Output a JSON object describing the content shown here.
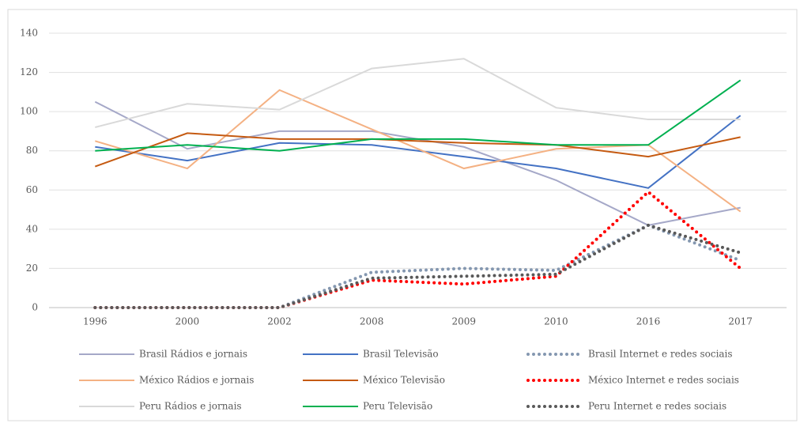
{
  "chart_data": {
    "type": "line",
    "categories": [
      "1996",
      "2000",
      "2002",
      "2008",
      "2009",
      "2010",
      "2016",
      "2017"
    ],
    "ylim": [
      0,
      140
    ],
    "yticks": [
      0,
      20,
      40,
      60,
      80,
      100,
      120,
      140
    ],
    "grid": true,
    "legend": "bottom",
    "series": [
      {
        "name": "Brasil Rádios e jornais",
        "color": "#a5a8c8",
        "style": "solid",
        "values": [
          105,
          81,
          90,
          90,
          82,
          65,
          42,
          51
        ]
      },
      {
        "name": "Brasil Televisão",
        "color": "#4472c4",
        "style": "solid",
        "values": [
          82,
          75,
          84,
          83,
          77,
          71,
          61,
          98
        ]
      },
      {
        "name": "Brasil Internet e redes sociais",
        "color": "#8497b0",
        "style": "dotted",
        "values": [
          0,
          0,
          0,
          18,
          20,
          19,
          42,
          24
        ]
      },
      {
        "name": "México Rádios e jornais",
        "color": "#f4b183",
        "style": "solid",
        "values": [
          85,
          71,
          111,
          91,
          71,
          81,
          83,
          49
        ]
      },
      {
        "name": "México Televisão",
        "color": "#c55a11",
        "style": "solid",
        "values": [
          72,
          89,
          86,
          86,
          84,
          83,
          77,
          87
        ]
      },
      {
        "name": "México Internet e redes sociais",
        "color": "#ff0000",
        "style": "dotted",
        "values": [
          0,
          0,
          0,
          14,
          12,
          16,
          59,
          20
        ]
      },
      {
        "name": "Peru Rádios e jornais",
        "color": "#d9d9d9",
        "style": "solid",
        "values": [
          92,
          104,
          101,
          122,
          127,
          102,
          96,
          96
        ]
      },
      {
        "name": "Peru Televisão",
        "color": "#00b050",
        "style": "solid",
        "values": [
          80,
          83,
          80,
          86,
          86,
          83,
          83,
          116
        ]
      },
      {
        "name": "Peru Internet e redes sociais",
        "color": "#595959",
        "style": "dotted",
        "values": [
          0,
          0,
          0,
          15,
          16,
          17,
          42,
          28
        ]
      }
    ]
  }
}
